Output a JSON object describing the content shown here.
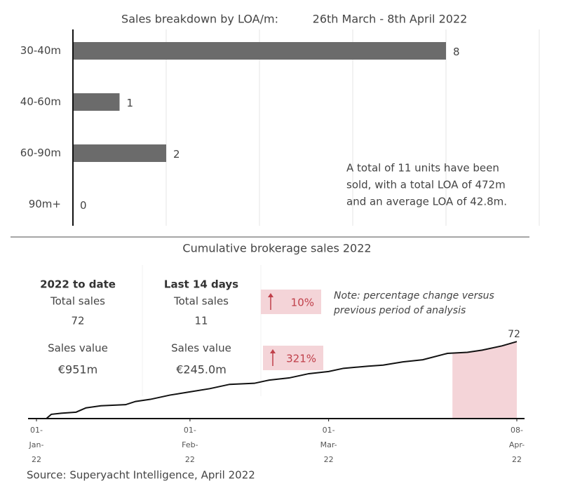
{
  "chart_data": [
    {
      "type": "hbar",
      "title": "Sales breakdown by LOA/m:",
      "subtitle": "26th March - 8th April 2022",
      "categories": [
        "30-40m",
        "40-60m",
        "60-90m",
        "90m+"
      ],
      "values": [
        8,
        1,
        2,
        0
      ],
      "color": "#6b6b6b",
      "xlim": [
        0,
        10
      ],
      "xticks": [
        0,
        2,
        4,
        6,
        8,
        10
      ],
      "grid": true,
      "annotation": [
        "A total of 11 units have been",
        "sold, with a total LOA of 472m",
        "and an average LOA of 42.8m."
      ]
    },
    {
      "type": "line",
      "title": "Cumulative brokerage sales 2022",
      "x": [
        "2022-01-01",
        "2022-01-03",
        "2022-01-04",
        "2022-01-06",
        "2022-01-09",
        "2022-01-11",
        "2022-01-14",
        "2022-01-19",
        "2022-01-21",
        "2022-01-24",
        "2022-01-28",
        "2022-02-01",
        "2022-02-05",
        "2022-02-09",
        "2022-02-14",
        "2022-02-17",
        "2022-02-21",
        "2022-02-25",
        "2022-03-01",
        "2022-03-04",
        "2022-03-09",
        "2022-03-12",
        "2022-03-16",
        "2022-03-20",
        "2022-03-25",
        "2022-03-29",
        "2022-04-01",
        "2022-04-05",
        "2022-04-08"
      ],
      "values": [
        0,
        0,
        4,
        5,
        6,
        10,
        12,
        13,
        16,
        18,
        22,
        25,
        28,
        32,
        33,
        36,
        38,
        42,
        44,
        47,
        49,
        50,
        53,
        55,
        61,
        62,
        64,
        68,
        72
      ],
      "color": "#111111",
      "xlim": [
        "2022-01-01",
        "2022-04-08"
      ],
      "xticks": [
        {
          "value": "2022-01-01",
          "label": "01-Jan-22"
        },
        {
          "value": "2022-02-01",
          "label": "01-Feb-22"
        },
        {
          "value": "2022-03-01",
          "label": "01-Mar-22"
        },
        {
          "value": "2022-04-08",
          "label": "08-Apr-22"
        }
      ],
      "ylim": [
        0,
        80
      ],
      "highlight": [
        "2022-03-26",
        "2022-04-08"
      ],
      "highlight_color": "#f4d4d8"
    }
  ],
  "summary": {
    "columns": [
      {
        "heading": "2022 to date",
        "sales_label": "Total sales",
        "sales": 72,
        "value_label": "Sales value",
        "value": "€951m"
      },
      {
        "heading": "Last 14 days",
        "sales_label": "Total sales",
        "sales": 11,
        "value_label": "Sales value",
        "value": "€245.0m"
      }
    ],
    "changes": [
      "10%",
      "321%"
    ],
    "note": [
      "Note: percentage change versus",
      "previous period of analysis"
    ]
  },
  "source": "Source: Superyacht Intelligence, April 2022"
}
